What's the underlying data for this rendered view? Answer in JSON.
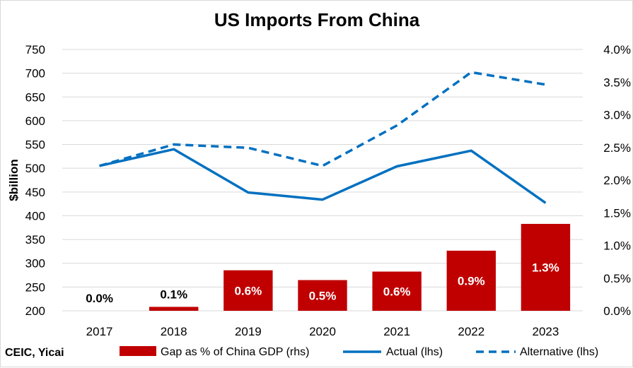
{
  "chart_data": {
    "type": "bar",
    "title": "US Imports From China",
    "ylabel": "$billion",
    "ylim": [
      200,
      750
    ],
    "y2lim": [
      0,
      4.0
    ],
    "y_ticks": [
      "200",
      "250",
      "300",
      "350",
      "400",
      "450",
      "500",
      "550",
      "600",
      "650",
      "700",
      "750"
    ],
    "y2_ticks": [
      "0.0%",
      "0.5%",
      "1.0%",
      "1.5%",
      "2.0%",
      "2.5%",
      "3.0%",
      "3.5%",
      "4.0%"
    ],
    "categories": [
      "2017",
      "2018",
      "2019",
      "2020",
      "2021",
      "2022",
      "2023"
    ],
    "series": [
      {
        "name": "Gap as % of China GDP (rhs)",
        "type": "bar",
        "axis": "right",
        "values": [
          0.0,
          0.06,
          0.62,
          0.47,
          0.6,
          0.92,
          1.33
        ],
        "labels": [
          "0.0%",
          "0.1%",
          "0.6%",
          "0.5%",
          "0.6%",
          "0.9%",
          "1.3%"
        ],
        "color": "#c00000"
      },
      {
        "name": "Actual (lhs)",
        "type": "line",
        "axis": "left",
        "values": [
          505,
          540,
          449,
          434,
          504,
          537,
          427
        ],
        "color": "#0070c0",
        "dash": false
      },
      {
        "name": "Alternative (lhs)",
        "type": "line",
        "axis": "left",
        "values": [
          505,
          550,
          543,
          505,
          590,
          702,
          676
        ],
        "color": "#0070c0",
        "dash": true
      }
    ],
    "legend_position": "bottom",
    "grid": true
  },
  "source": "CEIC, Yicai"
}
